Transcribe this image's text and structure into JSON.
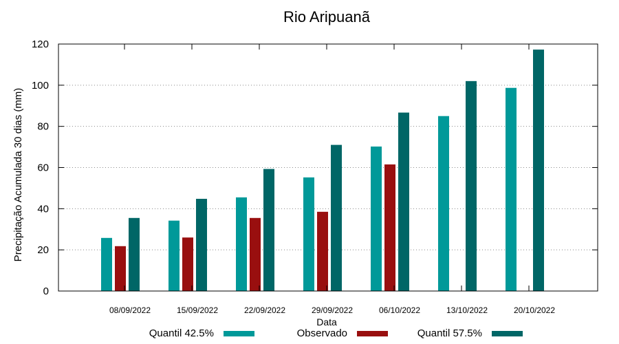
{
  "chart_data": {
    "type": "bar",
    "title": "Rio Aripuanã",
    "xlabel": "Data",
    "ylabel": "Precipitação Acumulada 30 dias (mm)",
    "ylim": [
      0,
      120
    ],
    "yticks": [
      0,
      20,
      40,
      60,
      80,
      100,
      120
    ],
    "grid": true,
    "categories": [
      "08/09/2022",
      "15/09/2022",
      "22/09/2022",
      "29/09/2022",
      "06/10/2022",
      "13/10/2022",
      "20/10/2022"
    ],
    "series": [
      {
        "name": "Quantil 42.5%",
        "color": "#009999",
        "values": [
          25.8,
          34.2,
          45.5,
          55.2,
          70.2,
          85.0,
          98.7
        ]
      },
      {
        "name": "Observado",
        "color": "#990F0F",
        "values": [
          21.8,
          26.0,
          35.5,
          38.5,
          61.5,
          null,
          null
        ]
      },
      {
        "name": "Quantil 57.5%",
        "color": "#006666",
        "values": [
          35.5,
          44.8,
          59.3,
          71.0,
          86.7,
          102.0,
          117.3
        ]
      }
    ],
    "legend_position": "bottom"
  }
}
